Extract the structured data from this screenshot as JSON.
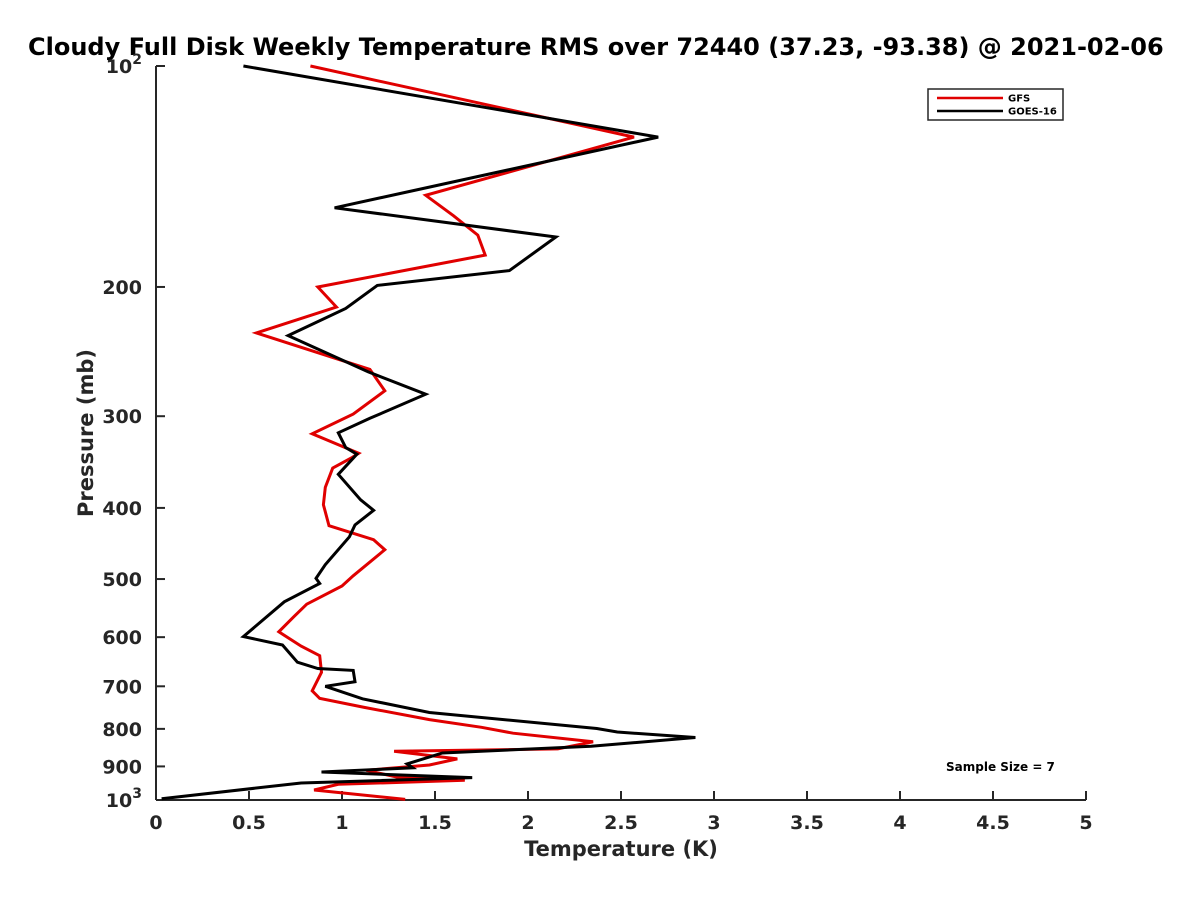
{
  "chart_data": {
    "type": "line",
    "title": "Cloudy Full Disk Weekly Temperature RMS over 72440 (37.23, -93.38) @ 2021-02-06",
    "xlabel": "Temperature (K)",
    "ylabel": "Pressure (mb)",
    "xlim": [
      0,
      5
    ],
    "ylim": [
      100,
      1000
    ],
    "yscale": "log",
    "y_reversed": true,
    "grid": false,
    "legend_position": "top-right",
    "x_ticks": [
      "0",
      "0.5",
      "1",
      "1.5",
      "2",
      "2.5",
      "3",
      "3.5",
      "4",
      "4.5",
      "5"
    ],
    "y_ticks": [
      {
        "value": 100,
        "base": "10",
        "exp": "2"
      },
      {
        "value": 200,
        "label": "200"
      },
      {
        "value": 300,
        "label": "300"
      },
      {
        "value": 400,
        "label": "400"
      },
      {
        "value": 500,
        "label": "500"
      },
      {
        "value": 600,
        "label": "600"
      },
      {
        "value": 700,
        "label": "700"
      },
      {
        "value": 800,
        "label": "800"
      },
      {
        "value": 900,
        "label": "900"
      },
      {
        "value": 1000,
        "base": "10",
        "exp": "3"
      }
    ],
    "annotation": "Sample Size = 7",
    "series": [
      {
        "name": "GFS",
        "color": "#e00000",
        "points": [
          [
            0.83,
            100
          ],
          [
            2.57,
            125
          ],
          [
            1.45,
            150
          ],
          [
            1.6,
            160
          ],
          [
            1.73,
            170
          ],
          [
            1.77,
            181
          ],
          [
            0.87,
            200
          ],
          [
            0.97,
            213
          ],
          [
            0.54,
            231
          ],
          [
            1.15,
            259
          ],
          [
            1.23,
            277
          ],
          [
            1.06,
            298
          ],
          [
            0.84,
            317
          ],
          [
            1.09,
            337
          ],
          [
            1.05,
            342
          ],
          [
            0.95,
            353
          ],
          [
            0.91,
            375
          ],
          [
            0.9,
            396
          ],
          [
            0.93,
            423
          ],
          [
            1.17,
            442
          ],
          [
            1.23,
            456
          ],
          [
            1.06,
            495
          ],
          [
            1.0,
            511
          ],
          [
            0.81,
            541
          ],
          [
            0.74,
            563
          ],
          [
            0.66,
            590
          ],
          [
            0.78,
            617
          ],
          [
            0.88,
            636
          ],
          [
            0.89,
            670
          ],
          [
            0.84,
            710
          ],
          [
            0.88,
            727
          ],
          [
            1.12,
            748
          ],
          [
            1.47,
            777
          ],
          [
            1.75,
            796
          ],
          [
            1.92,
            811
          ],
          [
            2.35,
            833
          ],
          [
            2.16,
            852
          ],
          [
            1.28,
            858
          ],
          [
            1.62,
            879
          ],
          [
            1.47,
            896
          ],
          [
            1.13,
            911
          ],
          [
            1.3,
            931
          ],
          [
            1.66,
            940
          ],
          [
            0.98,
            952
          ],
          [
            0.85,
            969
          ],
          [
            1.34,
            998
          ]
        ]
      },
      {
        "name": "GOES-16",
        "color": "#000000",
        "points": [
          [
            0.47,
            100
          ],
          [
            2.7,
            125
          ],
          [
            0.96,
            156
          ],
          [
            2.15,
            171
          ],
          [
            1.9,
            190
          ],
          [
            1.19,
            199
          ],
          [
            1.02,
            214
          ],
          [
            0.71,
            233
          ],
          [
            1.14,
            261
          ],
          [
            1.45,
            280
          ],
          [
            1.15,
            302
          ],
          [
            0.98,
            316
          ],
          [
            1.02,
            331
          ],
          [
            1.08,
            338
          ],
          [
            0.98,
            360
          ],
          [
            1.1,
            390
          ],
          [
            1.17,
            403
          ],
          [
            1.07,
            422
          ],
          [
            1.04,
            438
          ],
          [
            0.91,
            478
          ],
          [
            0.86,
            499
          ],
          [
            0.88,
            507
          ],
          [
            0.69,
            537
          ],
          [
            0.47,
            599
          ],
          [
            0.68,
            615
          ],
          [
            0.76,
            649
          ],
          [
            0.87,
            662
          ],
          [
            1.06,
            666
          ],
          [
            1.07,
            690
          ],
          [
            0.91,
            700
          ],
          [
            1.11,
            728
          ],
          [
            1.47,
            760
          ],
          [
            2.37,
            799
          ],
          [
            2.48,
            808
          ],
          [
            2.9,
            822
          ],
          [
            2.34,
            845
          ],
          [
            1.54,
            863
          ],
          [
            1.35,
            893
          ],
          [
            1.38,
            904
          ],
          [
            0.89,
            916
          ],
          [
            1.7,
            932
          ],
          [
            0.78,
            948
          ],
          [
            0.03,
            996
          ]
        ]
      }
    ]
  }
}
